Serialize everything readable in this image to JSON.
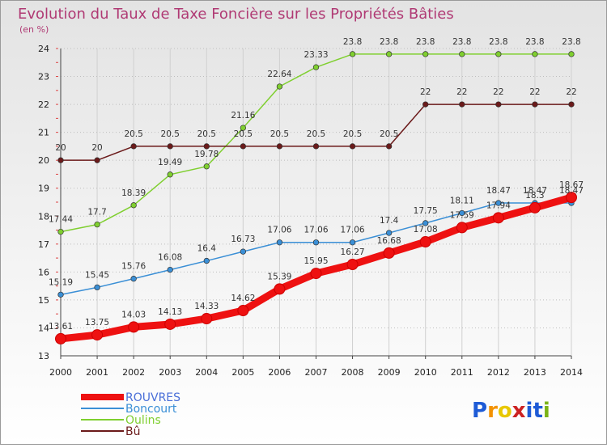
{
  "chart_data": {
    "type": "line",
    "title": "Evolution du Taux de Taxe Foncière sur les Propriétés Bâties",
    "subtitle": "(en %)",
    "x": [
      "2000",
      "2001",
      "2002",
      "2003",
      "2004",
      "2005",
      "2006",
      "2007",
      "2008",
      "2009",
      "2010",
      "2011",
      "2012",
      "2013",
      "2014"
    ],
    "ylim": [
      13,
      24
    ],
    "yticks": [
      13,
      14,
      15,
      16,
      17,
      18,
      19,
      20,
      21,
      22,
      23,
      24
    ],
    "grid": true,
    "legend_position": "bottom-left",
    "series": [
      {
        "name": "Oulins",
        "color": "#7fcf2f",
        "values": [
          17.44,
          17.7,
          18.39,
          19.49,
          19.78,
          21.16,
          22.64,
          23.33,
          23.8,
          23.8,
          23.8,
          23.8,
          23.8,
          23.8,
          23.8
        ],
        "labels": [
          "17.44",
          "17.7",
          "18.39",
          "19.49",
          "19.78",
          "21.16",
          "22.64",
          "23.33",
          "23.8",
          "23.8",
          "23.8",
          "23.8",
          "23.8",
          "23.8",
          "23.8"
        ]
      },
      {
        "name": "Bû",
        "color": "#6b1a1a",
        "values": [
          20,
          20,
          20.5,
          20.5,
          20.5,
          20.5,
          20.5,
          20.5,
          20.5,
          20.5,
          22,
          22,
          22,
          22,
          22
        ],
        "labels": [
          "20",
          "20",
          "20.5",
          "20.5",
          "20.5",
          "20.5",
          "20.5",
          "20.5",
          "20.5",
          "20.5",
          "22",
          "22",
          "22",
          "22",
          "22"
        ]
      },
      {
        "name": "Boncourt",
        "color": "#3a8fd6",
        "values": [
          15.19,
          15.45,
          15.76,
          16.08,
          16.4,
          16.73,
          17.06,
          17.06,
          17.06,
          17.4,
          17.75,
          18.11,
          18.47,
          18.47,
          18.47
        ],
        "labels": [
          "15.19",
          "15.45",
          "15.76",
          "16.08",
          "16.4",
          "16.73",
          "17.06",
          "17.06",
          "17.06",
          "17.4",
          "17.75",
          "18.11",
          "18.47",
          "18.47",
          "18.47"
        ]
      },
      {
        "name": "ROUVRES",
        "color": "#ee1111",
        "values": [
          13.61,
          13.75,
          14.03,
          14.13,
          14.33,
          14.62,
          15.39,
          15.95,
          16.27,
          16.68,
          17.08,
          17.59,
          17.94,
          18.3,
          18.67
        ],
        "labels": [
          "13.61",
          "13.75",
          "14.03",
          "14.13",
          "14.33",
          "14.62",
          "15.39",
          "15.95",
          "16.27",
          "16.68",
          "17.08",
          "17.59",
          "17.94",
          "18.3",
          "18.67"
        ]
      }
    ],
    "legend": [
      "ROUVRES",
      "Boncourt",
      "Oulins",
      "Bû"
    ]
  },
  "branding": {
    "logo_text": "Proxiti",
    "letter_colors": [
      "#1e5bd6",
      "#f39200",
      "#e8c800",
      "#cc2222",
      "#1e5bd6",
      "#1e5bd6",
      "#7ab317"
    ]
  }
}
